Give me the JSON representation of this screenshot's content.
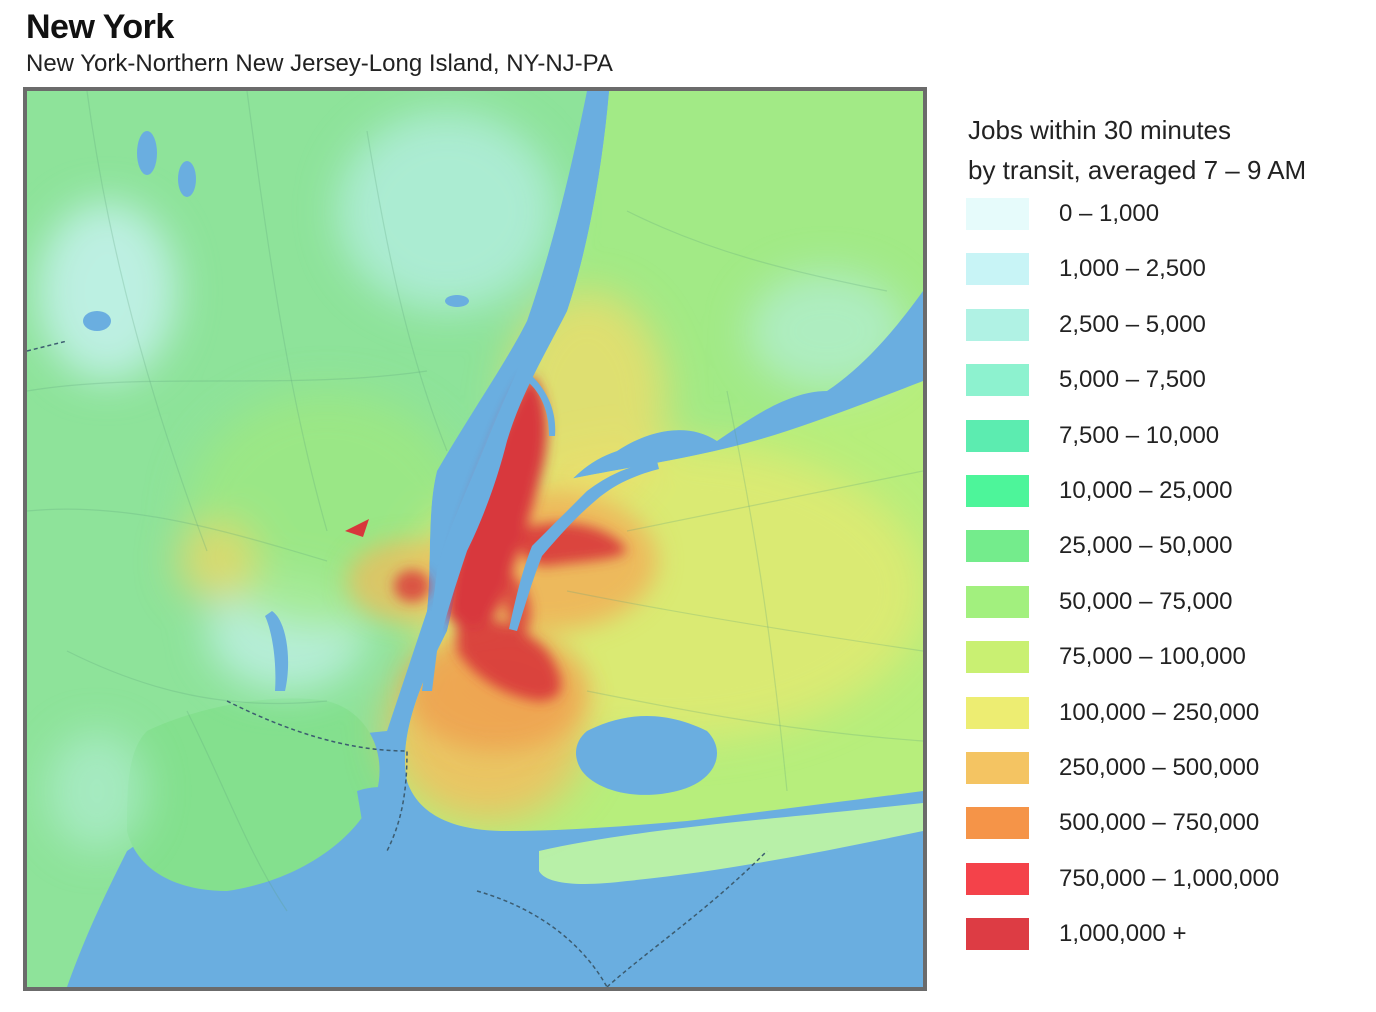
{
  "header": {
    "title": "New York",
    "subtitle": "New York-Northern New Jersey-Long Island, NY-NJ-PA"
  },
  "map": {
    "water_color": "#6aaee0",
    "heat_colors": {
      "low": "#a8ecf0",
      "green": "#7fe08a",
      "light_green": "#a6ec84",
      "yellow": "#e6e870",
      "orange": "#f2c45e",
      "red": "#d8373c"
    }
  },
  "legend": {
    "title_line1": "Jobs within 30 minutes",
    "title_line2": "by transit, averaged 7 – 9 AM",
    "items": [
      {
        "label": "0 – 1,000",
        "color": "#e6fbfb"
      },
      {
        "label": "1,000 – 2,500",
        "color": "#c8f4f6"
      },
      {
        "label": "2,500 – 5,000",
        "color": "#b0f2e4"
      },
      {
        "label": "5,000 – 7,500",
        "color": "#8df2cf"
      },
      {
        "label": "7,500 – 10,000",
        "color": "#5cecb0"
      },
      {
        "label": "10,000 – 25,000",
        "color": "#4df59a"
      },
      {
        "label": "25,000 – 50,000",
        "color": "#74ec8c"
      },
      {
        "label": "50,000 – 75,000",
        "color": "#a2f07e"
      },
      {
        "label": "75,000 – 100,000",
        "color": "#c9f072"
      },
      {
        "label": "100,000 – 250,000",
        "color": "#eded72"
      },
      {
        "label": "250,000 – 500,000",
        "color": "#f4c462"
      },
      {
        "label": "500,000 – 750,000",
        "color": "#f59448"
      },
      {
        "label": "750,000 – 1,000,000",
        "color": "#f4424a"
      },
      {
        "label": "1,000,000 +",
        "color": "#dd3c44"
      }
    ]
  }
}
